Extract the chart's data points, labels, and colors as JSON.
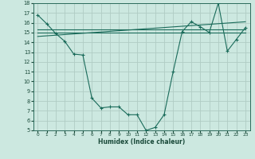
{
  "xlabel": "Humidex (Indice chaleur)",
  "bg_color": "#cce8e0",
  "grid_color": "#b0ccc4",
  "line_color": "#1a6b5a",
  "xlim": [
    -0.5,
    23.5
  ],
  "ylim": [
    5,
    18
  ],
  "xticks": [
    0,
    1,
    2,
    3,
    4,
    5,
    6,
    7,
    8,
    9,
    10,
    11,
    12,
    13,
    14,
    15,
    16,
    17,
    18,
    19,
    20,
    21,
    22,
    23
  ],
  "yticks": [
    5,
    6,
    7,
    8,
    9,
    10,
    11,
    12,
    13,
    14,
    15,
    16,
    17,
    18
  ],
  "curve1_x": [
    0,
    1,
    2,
    3,
    4,
    5,
    6,
    7,
    8,
    9,
    10,
    11,
    12,
    13,
    14,
    15,
    16,
    17,
    18,
    19,
    20,
    21,
    22,
    23
  ],
  "curve1_y": [
    16.8,
    15.9,
    14.9,
    14.1,
    12.8,
    12.7,
    8.3,
    7.3,
    7.4,
    7.4,
    6.6,
    6.6,
    5.0,
    5.3,
    6.6,
    11.0,
    15.1,
    16.1,
    15.6,
    15.0,
    18.0,
    13.1,
    14.3,
    15.5
  ],
  "line2_x": [
    0,
    23
  ],
  "line2_y": [
    15.0,
    15.0
  ],
  "line3_x": [
    0,
    23
  ],
  "line3_y": [
    14.6,
    16.1
  ],
  "line4_x": [
    0,
    23
  ],
  "line4_y": [
    15.3,
    15.3
  ]
}
